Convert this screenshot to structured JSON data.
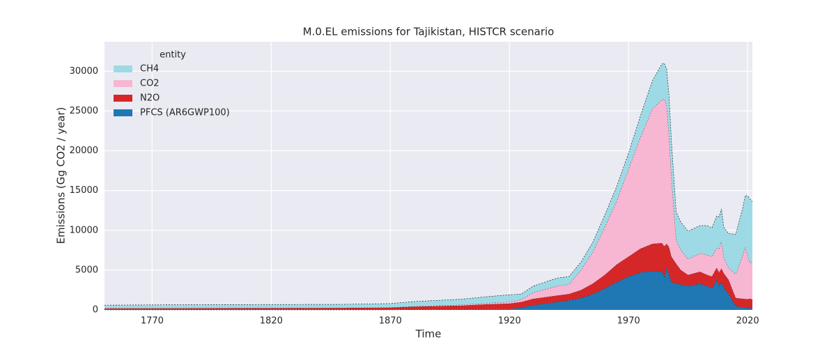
{
  "chart_data": {
    "type": "stacked_area",
    "title": "M.0.EL emissions for Tajikistan, HISTCR scenario",
    "x_label": "Time",
    "y_label": "Emissions (Gg CO2 / year)",
    "legend_title": "entity",
    "legend": "upper left",
    "grid": true,
    "x": [
      1750,
      1800,
      1850,
      1870,
      1880,
      1900,
      1910,
      1920,
      1925,
      1930,
      1935,
      1940,
      1945,
      1950,
      1955,
      1960,
      1965,
      1970,
      1975,
      1980,
      1984,
      1985,
      1986,
      1987,
      1988,
      1990,
      1992,
      1995,
      2000,
      2003,
      2005,
      2007,
      2008,
      2009,
      2010,
      2012,
      2015,
      2018,
      2019,
      2020,
      2021,
      2022
    ],
    "series": [
      {
        "name": "PFCS (AR6GWP100)",
        "color": "#1f77b4",
        "values": [
          0,
          0,
          0,
          0,
          50,
          50,
          100,
          100,
          300,
          600,
          800,
          1000,
          1200,
          1500,
          2000,
          2700,
          3500,
          4200,
          4700,
          4900,
          4800,
          4200,
          5300,
          4500,
          3500,
          3300,
          3200,
          3000,
          3300,
          3000,
          2700,
          3800,
          3000,
          3500,
          2800,
          2000,
          500,
          300,
          280,
          250,
          220,
          200
        ]
      },
      {
        "name": "N2O",
        "color": "#d62728",
        "values": [
          200,
          220,
          250,
          300,
          350,
          500,
          600,
          700,
          700,
          800,
          800,
          800,
          800,
          1000,
          1300,
          1700,
          2200,
          2500,
          3000,
          3400,
          3600,
          3800,
          3000,
          3400,
          3200,
          2500,
          1800,
          1400,
          1500,
          1400,
          1500,
          1500,
          1700,
          1700,
          1800,
          1800,
          1000,
          1100,
          1100,
          1100,
          1200,
          1100
        ]
      },
      {
        "name": "CO2",
        "color": "#f7b6d2",
        "values": [
          0,
          0,
          0,
          0,
          50,
          100,
          150,
          200,
          300,
          800,
          1000,
          1200,
          1200,
          2500,
          4000,
          6000,
          8000,
          11000,
          14000,
          17000,
          18000,
          18500,
          17500,
          14000,
          10000,
          3000,
          2500,
          2000,
          2300,
          2500,
          2500,
          2500,
          3000,
          3500,
          2000,
          1500,
          3000,
          5500,
          6500,
          5500,
          4500,
          4800
        ]
      },
      {
        "name": "CH4",
        "color": "#9edae5",
        "values": [
          400,
          450,
          450,
          500,
          600,
          700,
          800,
          900,
          700,
          800,
          900,
          1000,
          1000,
          1000,
          1200,
          1500,
          1800,
          2000,
          2700,
          3500,
          4500,
          4500,
          4500,
          5000,
          4500,
          3500,
          3500,
          3500,
          3500,
          3700,
          3600,
          4000,
          4000,
          4000,
          3800,
          4300,
          5000,
          6000,
          6500,
          7500,
          8000,
          7500
        ]
      }
    ],
    "xlim": [
      1750,
      2022
    ],
    "xticks": [
      1770,
      1820,
      1870,
      1920,
      1970,
      2020
    ],
    "ylim": [
      0,
      33700
    ],
    "yticks": [
      0,
      5000,
      10000,
      15000,
      20000,
      25000,
      30000
    ]
  }
}
